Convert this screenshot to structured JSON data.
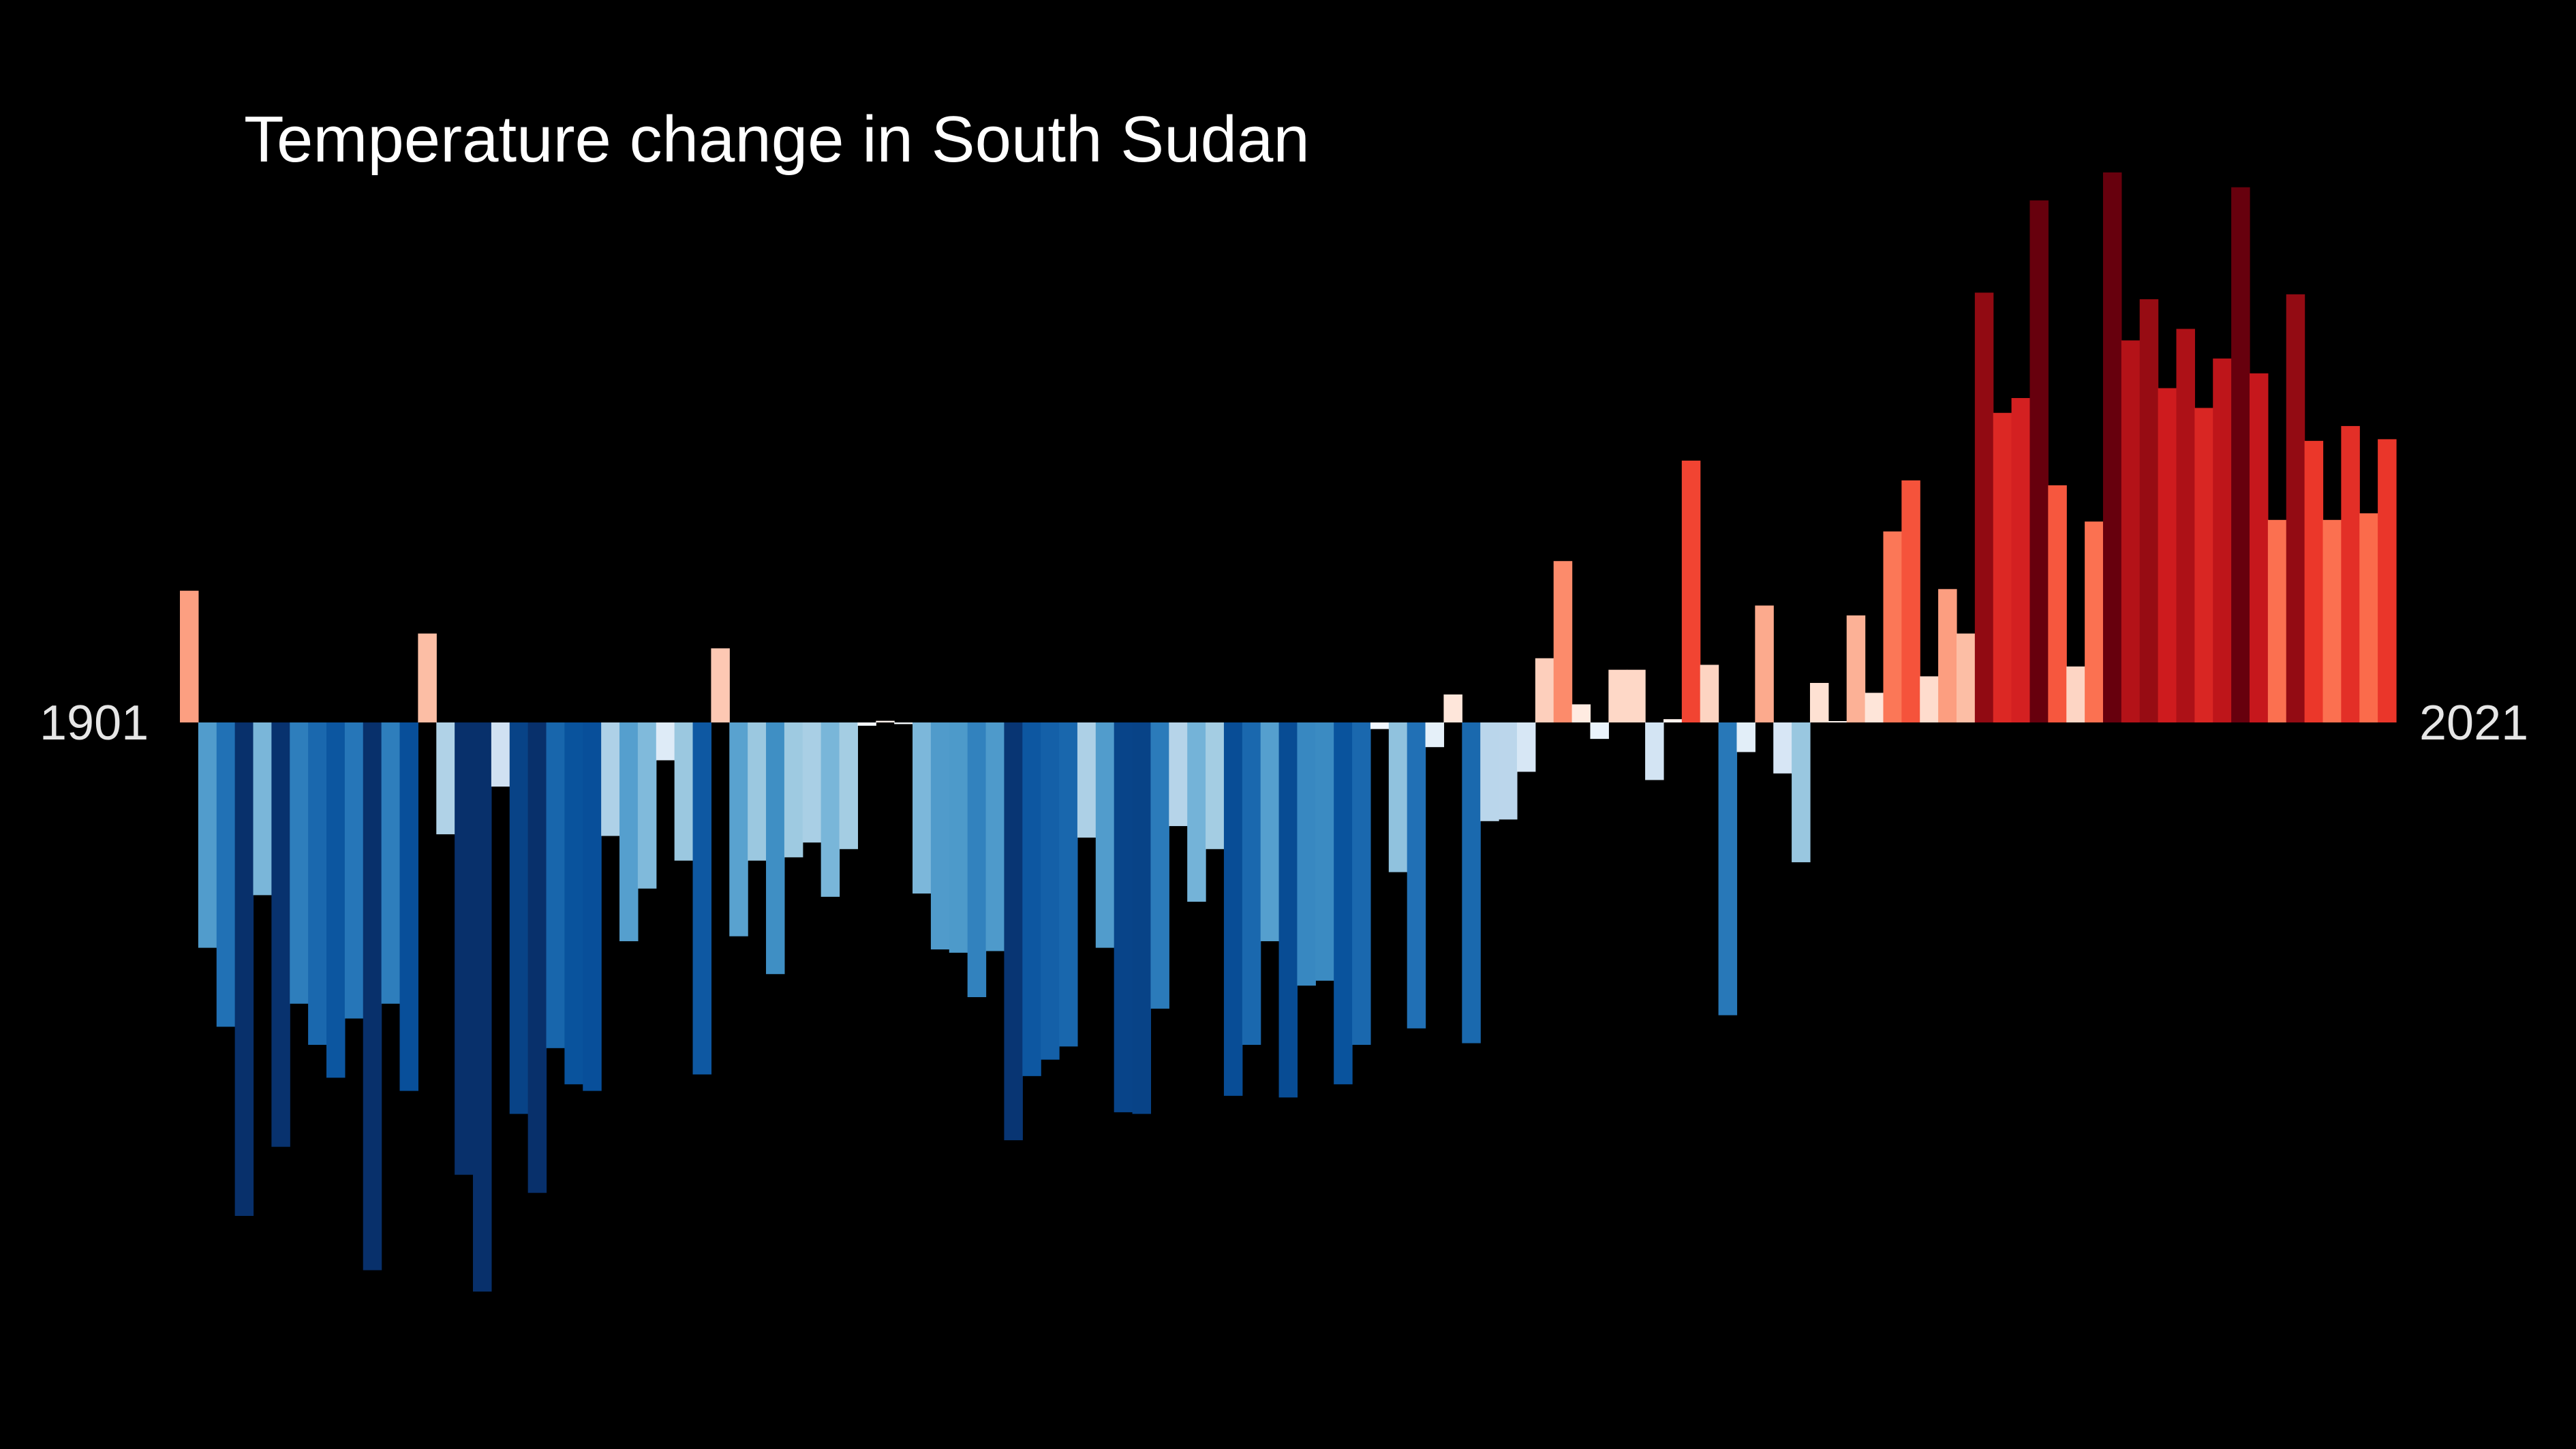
{
  "chart_data": {
    "type": "bar",
    "title": "Temperature change in South Sudan",
    "start_year_label": "1901",
    "end_year_label": "2021",
    "x": [
      1901,
      1902,
      1903,
      1904,
      1905,
      1906,
      1907,
      1908,
      1909,
      1910,
      1911,
      1912,
      1913,
      1914,
      1915,
      1916,
      1917,
      1918,
      1919,
      1920,
      1921,
      1922,
      1923,
      1924,
      1925,
      1926,
      1927,
      1928,
      1929,
      1930,
      1931,
      1932,
      1933,
      1934,
      1935,
      1936,
      1937,
      1938,
      1939,
      1940,
      1941,
      1942,
      1943,
      1944,
      1945,
      1946,
      1947,
      1948,
      1949,
      1950,
      1951,
      1952,
      1953,
      1954,
      1955,
      1956,
      1957,
      1958,
      1959,
      1960,
      1961,
      1962,
      1963,
      1964,
      1965,
      1966,
      1967,
      1968,
      1969,
      1970,
      1971,
      1972,
      1973,
      1974,
      1975,
      1976,
      1977,
      1978,
      1979,
      1980,
      1981,
      1982,
      1983,
      1984,
      1985,
      1986,
      1987,
      1988,
      1989,
      1990,
      1991,
      1992,
      1993,
      1994,
      1995,
      1996,
      1997,
      1998,
      1999,
      2000,
      2001,
      2002,
      2003,
      2004,
      2005,
      2006,
      2007,
      2008,
      2009,
      2010,
      2011,
      2012,
      2013,
      2014,
      2015,
      2016,
      2017,
      2018,
      2019,
      2020,
      2021
    ],
    "values": [
      0.8,
      -1.37,
      -1.85,
      -3.0,
      -1.05,
      -2.58,
      -1.71,
      -1.96,
      -2.16,
      -1.8,
      -3.33,
      -1.71,
      -2.24,
      0.54,
      -0.68,
      -2.75,
      -3.46,
      -0.39,
      -2.38,
      -2.86,
      -1.98,
      -2.2,
      -2.24,
      -0.69,
      -1.33,
      -1.01,
      -0.23,
      -0.84,
      -2.14,
      0.45,
      -1.3,
      -0.84,
      -1.53,
      -0.82,
      -0.73,
      -1.06,
      -0.77,
      -0.02,
      0.01,
      -0.01,
      -1.04,
      -1.38,
      -1.4,
      -1.67,
      -1.39,
      -2.54,
      -2.15,
      -2.05,
      -1.97,
      -0.7,
      -1.37,
      -2.37,
      -2.38,
      -1.74,
      -0.63,
      -1.09,
      -0.77,
      -2.27,
      -1.96,
      -1.33,
      -2.28,
      -1.6,
      -1.57,
      -2.2,
      -1.96,
      -0.04,
      -0.91,
      -1.86,
      -0.15,
      0.17,
      -1.95,
      -0.6,
      -0.59,
      -0.3,
      0.39,
      0.98,
      0.11,
      -0.1,
      0.32,
      0.32,
      -0.35,
      0.02,
      1.59,
      0.35,
      -1.78,
      -0.18,
      0.71,
      -0.31,
      -0.85,
      0.24,
      0.0,
      0.65,
      0.18,
      1.16,
      1.47,
      0.28,
      0.81,
      0.54,
      2.61,
      1.88,
      1.97,
      3.17,
      1.44,
      0.34,
      1.22,
      3.34,
      2.32,
      2.57,
      2.03,
      2.39,
      1.91,
      2.21,
      3.25,
      2.12,
      1.23,
      2.6,
      1.71,
      1.23,
      1.8,
      1.27,
      1.72
    ],
    "ylim": [
      -3.46,
      3.34
    ],
    "grid": false,
    "legend": "none",
    "colors": {
      "background": "#000000",
      "cold_extreme": "#08306b",
      "warm_extreme": "#67000d"
    }
  }
}
